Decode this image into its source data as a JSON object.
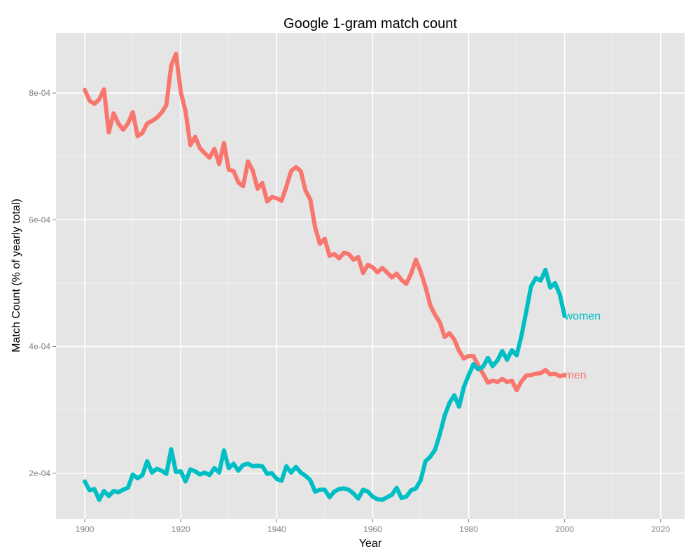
{
  "chart_data": {
    "type": "line",
    "title": "Google 1-gram match count",
    "xlabel": "Year",
    "ylabel": "Match Count (% of yearly total)",
    "xlim": [
      1894,
      2025
    ],
    "ylim": [
      0.000128,
      0.000895
    ],
    "x_ticks": [
      1900,
      1920,
      1940,
      1960,
      1980,
      2000,
      2020
    ],
    "x_tick_labels": [
      "1900",
      "1920",
      "1940",
      "1960",
      "1980",
      "2000",
      "2020"
    ],
    "y_ticks": [
      0.0002,
      0.0004,
      0.0006,
      0.0008
    ],
    "y_tick_labels": [
      "2e-04",
      "4e-04",
      "6e-04",
      "8e-04"
    ],
    "grid": true,
    "background": "#e5e5e5",
    "x": [
      1900,
      1901,
      1902,
      1903,
      1904,
      1905,
      1906,
      1907,
      1908,
      1909,
      1910,
      1911,
      1912,
      1913,
      1914,
      1915,
      1916,
      1917,
      1918,
      1919,
      1920,
      1921,
      1922,
      1923,
      1924,
      1925,
      1926,
      1927,
      1928,
      1929,
      1930,
      1931,
      1932,
      1933,
      1934,
      1935,
      1936,
      1937,
      1938,
      1939,
      1940,
      1941,
      1942,
      1943,
      1944,
      1945,
      1946,
      1947,
      1948,
      1949,
      1950,
      1951,
      1952,
      1953,
      1954,
      1955,
      1956,
      1957,
      1958,
      1959,
      1960,
      1961,
      1962,
      1963,
      1964,
      1965,
      1966,
      1967,
      1968,
      1969,
      1970,
      1971,
      1972,
      1973,
      1974,
      1975,
      1976,
      1977,
      1978,
      1979,
      1980,
      1981,
      1982,
      1983,
      1984,
      1985,
      1986,
      1987,
      1988,
      1989,
      1990,
      1991,
      1992,
      1993,
      1994,
      1995,
      1996,
      1997,
      1998,
      1999,
      2000
    ],
    "series": [
      {
        "name": "men",
        "label": "men",
        "color": "#f8766d",
        "values": [
          0.000805,
          0.000788,
          0.000783,
          0.00079,
          0.000806,
          0.000738,
          0.000768,
          0.000752,
          0.000742,
          0.000752,
          0.00077,
          0.000732,
          0.000737,
          0.000752,
          0.000756,
          0.000761,
          0.000769,
          0.000781,
          0.000843,
          0.000862,
          0.000802,
          0.000771,
          0.000718,
          0.000731,
          0.000713,
          0.000705,
          0.000698,
          0.000712,
          0.000688,
          0.000721,
          0.000679,
          0.000677,
          0.000659,
          0.000653,
          0.000692,
          0.000678,
          0.000649,
          0.000658,
          0.000629,
          0.000636,
          0.000634,
          0.00063,
          0.000652,
          0.000677,
          0.000683,
          0.000677,
          0.000646,
          0.000632,
          0.000588,
          0.000562,
          0.00057,
          0.000543,
          0.000546,
          0.000539,
          0.000548,
          0.000546,
          0.000537,
          0.000541,
          0.000516,
          0.000529,
          0.000525,
          0.000517,
          0.000524,
          0.000517,
          0.000509,
          0.000515,
          0.000505,
          0.000499,
          0.000515,
          0.000537,
          0.000518,
          0.000494,
          0.000465,
          0.00045,
          0.000438,
          0.000415,
          0.000421,
          0.000411,
          0.000393,
          0.000381,
          0.000385,
          0.000385,
          0.00037,
          0.000357,
          0.000343,
          0.000346,
          0.000344,
          0.000349,
          0.000344,
          0.000346,
          0.000331,
          0.000345,
          0.000354,
          0.000355,
          0.000357,
          0.000358,
          0.000363,
          0.000356,
          0.000357,
          0.000353,
          0.000355
        ]
      },
      {
        "name": "women",
        "label": "women",
        "color": "#00bfc4",
        "values": [
          0.000187,
          0.000173,
          0.000175,
          0.000158,
          0.000172,
          0.000164,
          0.000172,
          0.00017,
          0.000174,
          0.000177,
          0.000198,
          0.000192,
          0.000197,
          0.000219,
          0.000201,
          0.000207,
          0.000204,
          0.000199,
          0.000238,
          0.000202,
          0.000203,
          0.000187,
          0.000206,
          0.000203,
          0.000198,
          0.000201,
          0.000197,
          0.000208,
          0.000201,
          0.000236,
          0.000208,
          0.000215,
          0.000204,
          0.000213,
          0.000215,
          0.000211,
          0.000212,
          0.000211,
          0.000199,
          0.0002,
          0.000191,
          0.000188,
          0.000211,
          0.000201,
          0.00021,
          0.000201,
          0.000196,
          0.000189,
          0.000171,
          0.000174,
          0.000174,
          0.000162,
          0.000171,
          0.000175,
          0.000176,
          0.000174,
          0.000168,
          0.00016,
          0.000174,
          0.000171,
          0.000163,
          0.000159,
          0.000158,
          0.000162,
          0.000166,
          0.000177,
          0.000161,
          0.000163,
          0.000173,
          0.000176,
          0.000189,
          0.000219,
          0.000226,
          0.000237,
          0.000262,
          0.000291,
          0.000311,
          0.000323,
          0.000305,
          0.000336,
          0.000355,
          0.000372,
          0.000364,
          0.000368,
          0.000382,
          0.000369,
          0.000378,
          0.000393,
          0.000379,
          0.000394,
          0.000386,
          0.000417,
          0.000455,
          0.000495,
          0.000508,
          0.000504,
          0.000521,
          0.000493,
          0.0005,
          0.000482,
          0.000448
        ]
      }
    ]
  }
}
